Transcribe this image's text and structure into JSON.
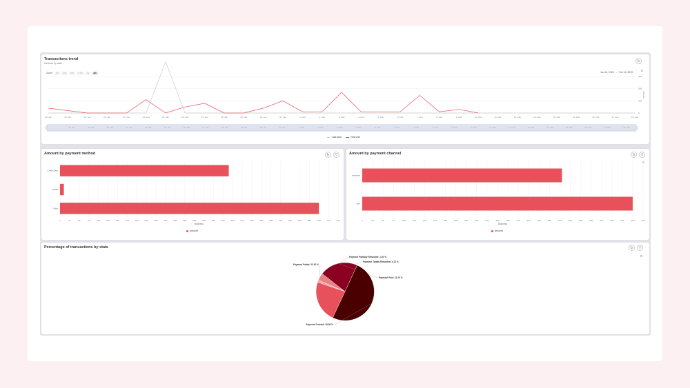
{
  "colors": {
    "accent": "#e8505b",
    "last_year": "#cccccc",
    "this_year": "#e8505b",
    "grid": "#ececec",
    "pie": [
      "#e8505b",
      "#f5a3a6",
      "#e58282",
      "#8b0020",
      "#4a0000"
    ]
  },
  "trend": {
    "title": "Transactions trend",
    "subtitle": "Zoomed by date",
    "zoom_label": "Zoom",
    "zoom_buttons": [
      "1m",
      "3m",
      "6m",
      "YTD",
      "1y",
      "All"
    ],
    "zoom_active": "All",
    "date_from": "Jan 16, 2023",
    "date_sep": "→",
    "date_to": "Feb 16, 2023",
    "reset_icon": "refresh-icon",
    "menu_icon": "hamburger-menu-icon",
    "legend": {
      "last_year": "Last year",
      "this_year": "This year"
    }
  },
  "method": {
    "title": "Amount by payment method",
    "legend": "Amount"
  },
  "channel": {
    "title": "Amount by payment channel",
    "legend": "Amount"
  },
  "state": {
    "title": "Percentage of transactions by state"
  },
  "chart_data": [
    {
      "type": "line",
      "x": [
        "19. Jan",
        "20. Jan",
        "21. Jan",
        "22. Jan",
        "23. Jan",
        "24. Jan",
        "25. Jan",
        "26. Jan",
        "27. Jan",
        "28. Jan",
        "29. Jan",
        "30. Jan",
        "31. Jan",
        "1. Feb",
        "2. Feb",
        "3. Feb",
        "4. Feb",
        "5. Feb",
        "6. Feb",
        "7. Feb",
        "8. Feb",
        "9. Feb",
        "10. Feb",
        "11. Feb",
        "12. Feb",
        "13. Feb",
        "14. Feb",
        "15. Feb",
        "16. Feb",
        "17. Feb",
        "18. Feb"
      ],
      "series": [
        {
          "name": "Last year",
          "values": [
            0,
            0,
            0,
            0,
            0,
            0,
            420,
            0,
            0,
            0,
            0,
            0,
            0,
            0,
            0,
            0,
            0,
            0,
            0,
            0,
            0,
            0,
            0,
            0,
            0,
            0,
            0,
            0,
            0,
            0,
            0
          ]
        },
        {
          "name": "This year",
          "values": [
            40,
            20,
            0,
            0,
            0,
            110,
            0,
            50,
            80,
            0,
            0,
            40,
            100,
            10,
            10,
            170,
            10,
            10,
            10,
            145,
            10,
            30,
            0,
            null,
            null,
            null,
            null,
            null,
            null,
            null,
            null
          ]
        }
      ],
      "ylabel": "Amount",
      "yticks": [
        0,
        100,
        200,
        300
      ],
      "ylim": [
        0,
        300
      ],
      "grid": true,
      "legend": "bottom",
      "navigator_x": [
        "20. Jan",
        "21. Jan",
        "22. Jan",
        "23. Jan",
        "24. Jan",
        "25. Jan",
        "26. Jan",
        "27. Jan",
        "28. Jan",
        "29. Jan",
        "30. Jan",
        "31. Jan",
        "1. Feb",
        "2. Feb",
        "3. Feb",
        "4. Feb",
        "5. Feb",
        "6. Feb",
        "7. Feb",
        "8. Feb",
        "9. Feb",
        "10. Feb",
        "11. Feb",
        "12. Feb",
        "13. Feb",
        "14. Feb",
        "15. Feb",
        "16. Feb",
        "17. Feb",
        "18. Feb"
      ]
    },
    {
      "type": "bar",
      "orientation": "horizontal",
      "categories": [
        "Credit Card",
        "Wallet",
        "Other"
      ],
      "values": [
        440,
        10,
        675
      ],
      "xlabel": "Business",
      "xticks": [
        0,
        25,
        50,
        75,
        100,
        125,
        150,
        175,
        200,
        225,
        250,
        275,
        300,
        325,
        350,
        375,
        400,
        425,
        450,
        475,
        500,
        525,
        550,
        575,
        600,
        625,
        650,
        675,
        700,
        725
      ],
      "xlim": [
        0,
        725
      ],
      "grid": true,
      "legend": "bottom"
    },
    {
      "type": "bar",
      "orientation": "horizontal",
      "categories": [
        "unknown",
        "web"
      ],
      "values": [
        480,
        650
      ],
      "xlabel": "Business",
      "xticks": [
        0,
        25,
        50,
        75,
        100,
        125,
        150,
        175,
        200,
        225,
        250,
        275,
        300,
        325,
        350,
        375,
        400,
        425,
        450,
        475,
        500,
        525,
        550,
        575,
        600,
        625,
        650,
        675
      ],
      "xlim": [
        0,
        675
      ],
      "grid": true,
      "legend": "bottom"
    },
    {
      "type": "pie",
      "slices": [
        {
          "name": "Payment Failed",
          "value": 23.2,
          "label": "Payment Failed: 23.20 %"
        },
        {
          "name": "Payment Partially Refunded",
          "value": 1.2,
          "label": "Payment Partially Refunded: 1.20 %"
        },
        {
          "name": "Payment Totally Refunded",
          "value": 4.12,
          "label": "Payment Totally Refunded: 4.12 %"
        },
        {
          "name": "Payment Paid",
          "value": 21.2,
          "label": "Payment Paid: 21.20 %"
        },
        {
          "name": "Payment Created",
          "value": 49.88,
          "label": "Payment Created: 49.88 %"
        }
      ]
    }
  ]
}
